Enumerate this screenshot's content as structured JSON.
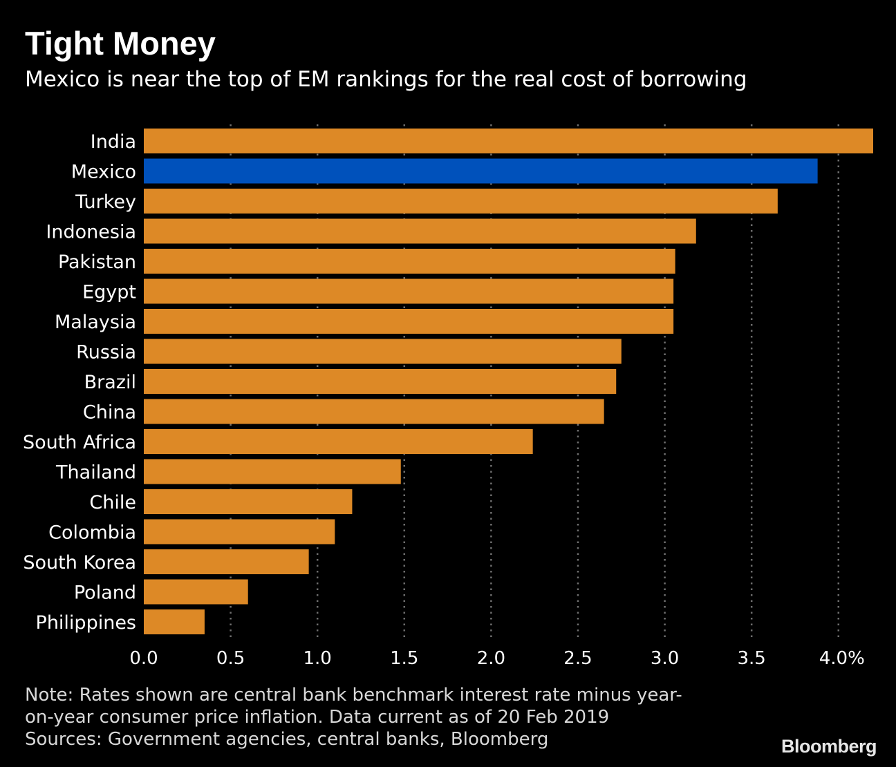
{
  "header": {
    "title": "Tight Money",
    "subtitle": "Mexico is near the top of EM rankings for the real cost of borrowing"
  },
  "chart_data": {
    "type": "bar",
    "orientation": "horizontal",
    "categories": [
      "India",
      "Mexico",
      "Turkey",
      "Indonesia",
      "Pakistan",
      "Egypt",
      "Malaysia",
      "Russia",
      "Brazil",
      "China",
      "South Africa",
      "Thailand",
      "Chile",
      "Colombia",
      "South Korea",
      "Poland",
      "Philippines"
    ],
    "values": [
      4.2,
      3.88,
      3.65,
      3.18,
      3.06,
      3.05,
      3.05,
      2.75,
      2.72,
      2.65,
      2.24,
      1.48,
      1.2,
      1.1,
      0.95,
      0.6,
      0.35
    ],
    "highlight": "Mexico",
    "xlim": [
      0,
      4.2
    ],
    "xticks": [
      "0.0",
      "0.5",
      "1.0",
      "1.5",
      "2.0",
      "2.5",
      "3.0",
      "3.5",
      "4.0%"
    ],
    "xtick_values": [
      0,
      0.5,
      1.0,
      1.5,
      2.0,
      2.5,
      3.0,
      3.5,
      4.0
    ],
    "grid": "vertical-dotted",
    "colors": {
      "bar": "#dd8926",
      "highlight": "#0051bb",
      "grid": "#6f6f6f",
      "background": "#000000",
      "text": "#ffffff"
    }
  },
  "footer": {
    "note_line1": "Note: Rates shown are central bank benchmark interest rate minus year-",
    "note_line2": "on-year consumer price inflation. Data current as of 20 Feb 2019",
    "sources": "Sources: Government agencies, central banks, Bloomberg",
    "brand": "Bloomberg"
  }
}
